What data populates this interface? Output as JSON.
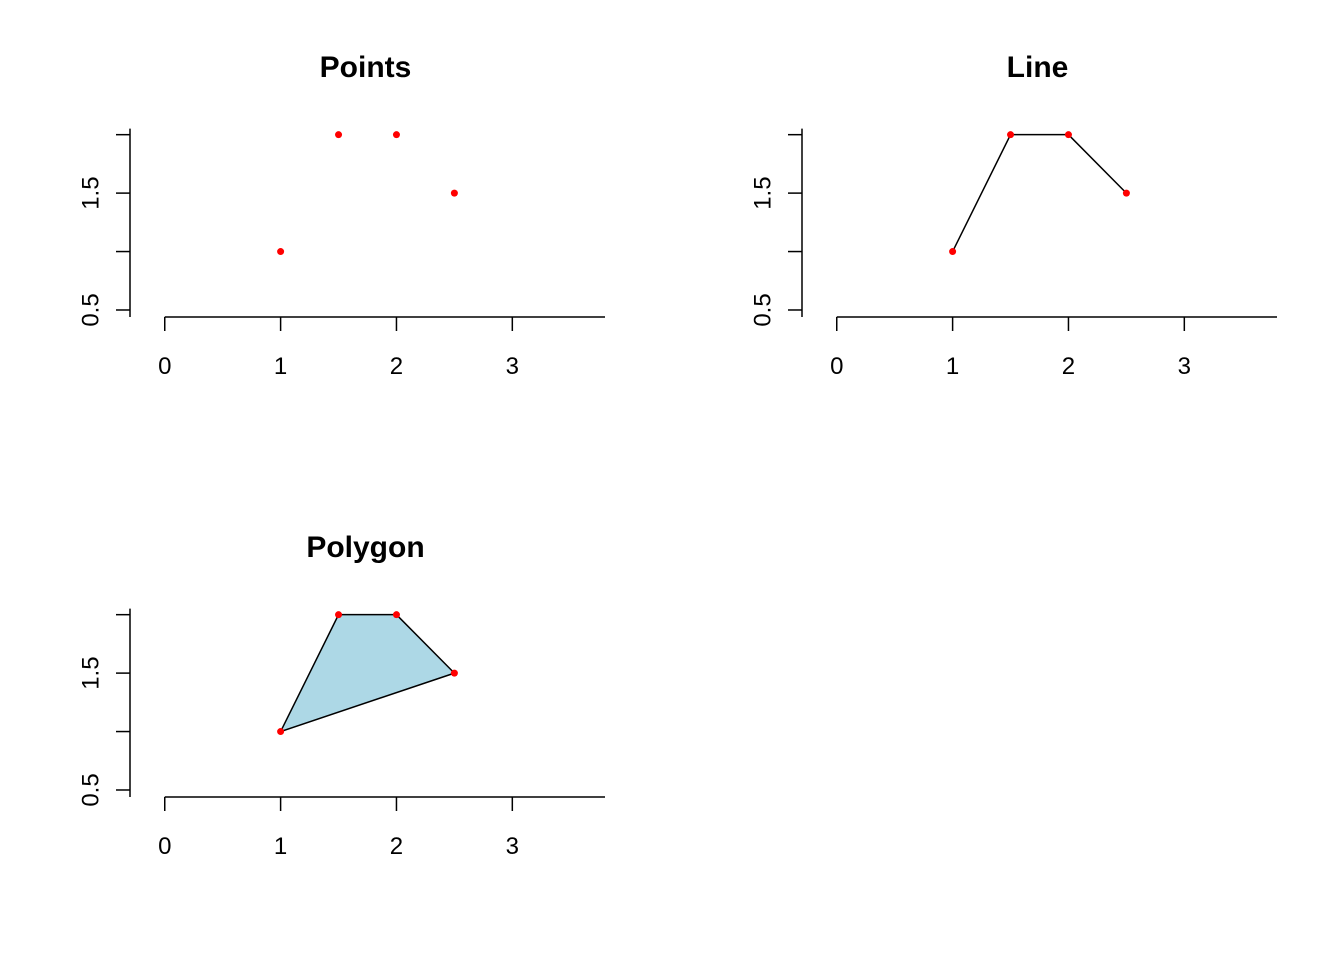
{
  "chart_data": [
    {
      "type": "scatter",
      "title": "Points",
      "xlabel": "",
      "ylabel": "",
      "x_ticks": [
        0,
        1,
        2,
        3
      ],
      "y_ticks": [
        0.5,
        1.0,
        1.5,
        2.0
      ],
      "y_tick_labels": [
        "0.5",
        "",
        "1.5",
        ""
      ],
      "xlim": [
        -0.3,
        3.8
      ],
      "ylim": [
        0.44,
        2.04
      ],
      "grid": false,
      "point_color": "#ff0000",
      "x": [
        1,
        1.5,
        2,
        2.5
      ],
      "y": [
        1,
        2,
        2,
        1.5
      ]
    },
    {
      "type": "line",
      "title": "Line",
      "xlabel": "",
      "ylabel": "",
      "x_ticks": [
        0,
        1,
        2,
        3
      ],
      "y_ticks": [
        0.5,
        1.0,
        1.5,
        2.0
      ],
      "y_tick_labels": [
        "0.5",
        "",
        "1.5",
        ""
      ],
      "xlim": [
        -0.3,
        3.8
      ],
      "ylim": [
        0.44,
        2.04
      ],
      "grid": false,
      "point_color": "#ff0000",
      "line_color": "#000000",
      "x": [
        1,
        1.5,
        2,
        2.5
      ],
      "y": [
        1,
        2,
        2,
        1.5
      ]
    },
    {
      "type": "polygon",
      "title": "Polygon",
      "xlabel": "",
      "ylabel": "",
      "x_ticks": [
        0,
        1,
        2,
        3
      ],
      "y_ticks": [
        0.5,
        1.0,
        1.5,
        2.0
      ],
      "y_tick_labels": [
        "0.5",
        "",
        "1.5",
        ""
      ],
      "xlim": [
        -0.3,
        3.8
      ],
      "ylim": [
        0.44,
        2.04
      ],
      "grid": false,
      "point_color": "#ff0000",
      "line_color": "#000000",
      "fill_color": "#add8e6",
      "x": [
        1,
        1.5,
        2,
        2.5
      ],
      "y": [
        1,
        2,
        2,
        1.5
      ]
    }
  ]
}
